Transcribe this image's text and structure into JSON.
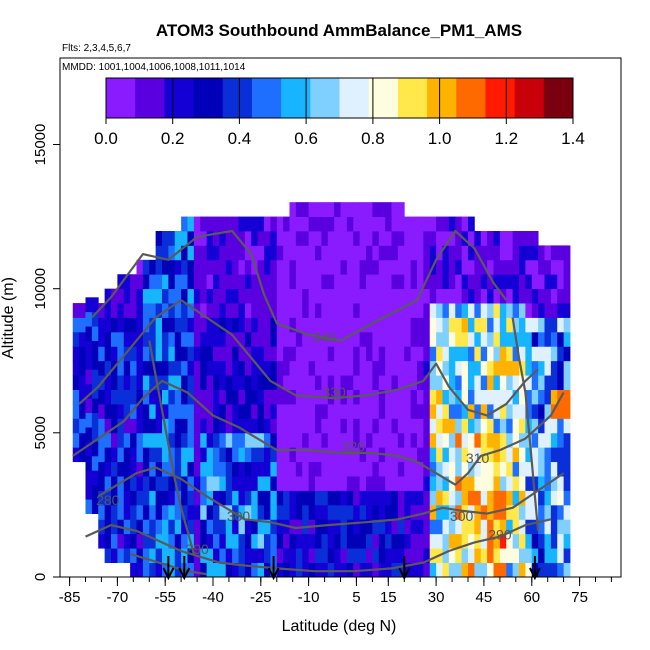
{
  "chart_data": {
    "type": "heatmap",
    "title": "ATOM3 Southbound AmmBalance_PM1_AMS",
    "subtitle_flights": "Flts: 2,3,4,5,6,7",
    "subtitle_dates": "MMDD: 1001,1004,1006,1008,1011,1014",
    "xlabel": "Latitude (deg N)",
    "ylabel": "Altitude (m)",
    "xlim": [
      -88,
      88
    ],
    "ylim": [
      0,
      18000
    ],
    "x_ticks": [
      -85,
      -70,
      -55,
      -40,
      -25,
      -10,
      5,
      15,
      30,
      45,
      60,
      75
    ],
    "x_tick_labels": [
      "-85",
      "-70",
      "-55",
      "-40",
      "-25",
      "-10",
      "5",
      "15",
      "30",
      "45",
      "60",
      "75"
    ],
    "y_ticks": [
      0,
      5000,
      10000,
      15000
    ],
    "y_tick_labels": [
      "0",
      "5000",
      "10000",
      "15000"
    ],
    "colorbar": {
      "min": 0.0,
      "max": 1.4,
      "tick_values": [
        0.0,
        0.2,
        0.4,
        0.6,
        0.8,
        1.0,
        1.2,
        1.4
      ],
      "tick_labels": [
        "0.0",
        "0.2",
        "0.4",
        "0.6",
        "0.8",
        "1.0",
        "1.2",
        "1.4"
      ],
      "colors": [
        "#8a1aff",
        "#5a00e0",
        "#1400d4",
        "#0000b8",
        "#0a2fd8",
        "#1f6fff",
        "#17b4ff",
        "#7fd0ff",
        "#dff0ff",
        "#fffde0",
        "#ffe84a",
        "#ffb200",
        "#ff6a00",
        "#ff1a00",
        "#c8000a",
        "#7a0010"
      ]
    },
    "contour_labels": [
      {
        "text": "340",
        "lat": -5,
        "alt": 8150
      },
      {
        "text": "330",
        "lat": -2,
        "alt": 6250
      },
      {
        "text": "320",
        "lat": 4,
        "alt": 4350
      },
      {
        "text": "310",
        "lat": 43,
        "alt": 3950
      },
      {
        "text": "300",
        "lat": -32,
        "alt": 1950
      },
      {
        "text": "300",
        "lat": 38,
        "alt": 1950
      },
      {
        "text": "290",
        "lat": -45,
        "alt": 800
      },
      {
        "text": "290",
        "lat": 50,
        "alt": 1300
      },
      {
        "text": "280",
        "lat": -73,
        "alt": 2500
      }
    ],
    "arrows_lat": [
      -54,
      -49,
      -21,
      20,
      61
    ],
    "description_values": {
      "upper_troposphere": "mostly 0.0 to 0.2",
      "low_latitude_mid": "0.0 to 0.1",
      "northern_midlatitudes_low": "0.6 to 1.2"
    }
  }
}
